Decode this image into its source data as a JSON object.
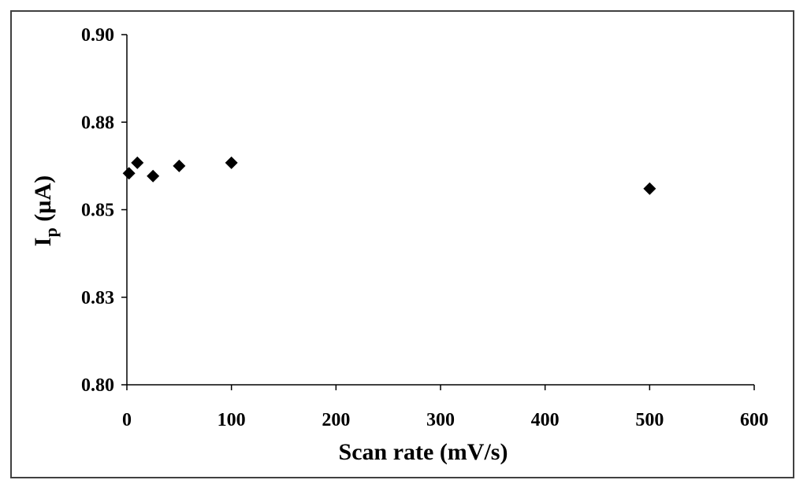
{
  "chart_data": {
    "type": "scatter",
    "xlabel": "Scan rate (mV/s)",
    "ylabel_main": "I",
    "ylabel_sub": "p",
    "ylabel_rest": " (µA)",
    "xlim": [
      0,
      600
    ],
    "ylim": [
      0.8,
      0.9
    ],
    "x_ticks": [
      0,
      100,
      200,
      300,
      400,
      500,
      600
    ],
    "y_ticks": [
      {
        "value": 0.8,
        "label": "0.80"
      },
      {
        "value": 0.825,
        "label": "0.83"
      },
      {
        "value": 0.85,
        "label": "0.85"
      },
      {
        "value": 0.875,
        "label": "0.88"
      },
      {
        "value": 0.9,
        "label": "0.90"
      }
    ],
    "grid": false,
    "legend": "none",
    "marker": "diamond",
    "marker_color": "#000000",
    "points": [
      {
        "x": 2,
        "y": 0.8604
      },
      {
        "x": 10,
        "y": 0.8634
      },
      {
        "x": 25,
        "y": 0.8596
      },
      {
        "x": 50,
        "y": 0.8625
      },
      {
        "x": 100,
        "y": 0.8634
      },
      {
        "x": 500,
        "y": 0.856
      }
    ]
  }
}
